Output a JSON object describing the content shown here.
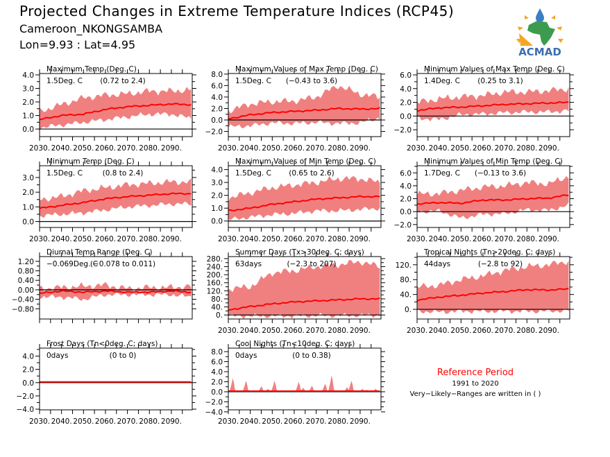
{
  "header": {
    "title": "Projected Changes in Extreme Temperature Indices (RCP45)",
    "location": "Cameroon_NKONGSAMBA",
    "coords": "Lon=9.93 : Lat=4.95"
  },
  "logo": {
    "text": "ACMAD"
  },
  "reference": {
    "title": "Reference Period",
    "period": "1991 to 2020",
    "note": "Very−Likely−Ranges are written in ( )"
  },
  "colors": {
    "mean": "#ff0000",
    "band": "#f08080",
    "zero": "#000000",
    "ref_title": "#ff0000"
  },
  "chart_data": [
    {
      "type": "area",
      "title": "Maximum Temp (Deg. C)",
      "value_label": "1.5Deg. C",
      "range_label": "(0.72 to 2.4)",
      "ylim": [
        -0.56,
        4.1
      ],
      "yticks": [
        0,
        1,
        2,
        3,
        4
      ],
      "ytick_labels": [
        "0.0",
        "1.0",
        "2.0",
        "3.0",
        "4.0"
      ],
      "x": [
        2030,
        2040,
        2050,
        2060,
        2070,
        2080,
        2090,
        2099
      ],
      "mean": [
        0.7,
        1.0,
        1.1,
        1.45,
        1.65,
        1.75,
        1.85,
        1.8
      ],
      "lower": [
        0.1,
        0.3,
        0.5,
        0.7,
        0.9,
        1.1,
        1.1,
        0.8
      ],
      "upper": [
        1.3,
        1.8,
        2.3,
        2.5,
        2.6,
        2.8,
        2.8,
        2.9
      ]
    },
    {
      "type": "area",
      "title": "Maximum Values of Max Temp (Deg. C)",
      "value_label": "1.5Deg. C",
      "range_label": "(−0.43 to 3.6)",
      "ylim": [
        -2.9,
        8.1
      ],
      "yticks": [
        -2,
        0,
        2,
        4,
        6,
        8
      ],
      "ytick_labels": [
        "−2.0",
        "0.0",
        "2.0",
        "4.0",
        "6.0",
        "8.0"
      ],
      "x": [
        2030,
        2040,
        2050,
        2060,
        2070,
        2080,
        2090,
        2099
      ],
      "mean": [
        0.2,
        0.9,
        1.3,
        1.5,
        1.7,
        2.0,
        1.9,
        2.0
      ],
      "lower": [
        -1.2,
        -1.0,
        -0.5,
        -0.6,
        -0.4,
        -0.6,
        -0.5,
        0.4
      ],
      "upper": [
        1.6,
        2.8,
        3.2,
        3.3,
        4.0,
        6.0,
        4.5,
        4.0
      ]
    },
    {
      "type": "area",
      "title": "Minimum Values of Max Temp (Deg. C)",
      "value_label": "1.4Deg. C",
      "range_label": "(0.25 to 3.1)",
      "ylim": [
        -3.0,
        6.2
      ],
      "yticks": [
        -2,
        0,
        2,
        4,
        6
      ],
      "ytick_labels": [
        "−2.0",
        "0.0",
        "2.0",
        "4.0",
        "6.0"
      ],
      "x": [
        2030,
        2040,
        2050,
        2060,
        2070,
        2080,
        2090,
        2099
      ],
      "mean": [
        0.8,
        1.2,
        1.3,
        1.5,
        1.7,
        1.8,
        1.9,
        2.0
      ],
      "lower": [
        -0.3,
        -0.5,
        0.2,
        0.3,
        0.5,
        0.6,
        0.6,
        0.8
      ],
      "upper": [
        2.0,
        2.5,
        2.8,
        3.0,
        3.5,
        3.5,
        3.7,
        4.0
      ]
    },
    {
      "type": "area",
      "title": "Minimum Temp (Deg. C)",
      "value_label": "1.5Deg. C",
      "range_label": "(0.8 to 2.4)",
      "ylim": [
        -0.4,
        3.8
      ],
      "yticks": [
        0,
        1,
        2,
        3
      ],
      "ytick_labels": [
        "0.0",
        "1.0",
        "2.0",
        "3.0"
      ],
      "x": [
        2030,
        2040,
        2050,
        2060,
        2070,
        2080,
        2090,
        2099
      ],
      "mean": [
        0.9,
        1.1,
        1.3,
        1.55,
        1.7,
        1.8,
        1.9,
        1.9
      ],
      "lower": [
        0.4,
        0.5,
        0.6,
        0.8,
        1.0,
        1.1,
        1.2,
        1.2
      ],
      "upper": [
        1.5,
        1.7,
        2.1,
        2.3,
        2.5,
        2.6,
        2.7,
        2.7
      ]
    },
    {
      "type": "area",
      "title": "Maximum Values of Min Temp (Deg. C)",
      "value_label": "1.5Deg. C",
      "range_label": "(0.65 to 2.6)",
      "ylim": [
        -0.5,
        4.3
      ],
      "yticks": [
        0,
        1,
        2,
        3,
        4
      ],
      "ytick_labels": [
        "0.0",
        "1.0",
        "2.0",
        "3.0",
        "4.0"
      ],
      "x": [
        2030,
        2040,
        2050,
        2060,
        2070,
        2080,
        2090,
        2099
      ],
      "mean": [
        0.8,
        1.0,
        1.3,
        1.5,
        1.7,
        1.8,
        1.9,
        1.9
      ],
      "lower": [
        0.1,
        0.3,
        0.5,
        0.6,
        0.8,
        0.8,
        0.9,
        1.0
      ],
      "upper": [
        1.8,
        2.2,
        2.6,
        2.8,
        3.0,
        3.3,
        3.3,
        3.0
      ]
    },
    {
      "type": "area",
      "title": "Minimum Values of Min Temp (Deg. C)",
      "value_label": "1.7Deg. C",
      "range_label": "(−0.13 to 3.6)",
      "ylim": [
        -2.45,
        7.1
      ],
      "yticks": [
        -2,
        0,
        2,
        4,
        6
      ],
      "ytick_labels": [
        "−2.0",
        "0.0",
        "2.0",
        "4.0",
        "6.0"
      ],
      "x": [
        2030,
        2040,
        2050,
        2060,
        2070,
        2080,
        2090,
        2099
      ],
      "mean": [
        1.2,
        1.4,
        1.3,
        1.8,
        1.8,
        2.0,
        2.1,
        2.6
      ],
      "lower": [
        0,
        0.1,
        -1.0,
        -0.4,
        -0.3,
        0.3,
        0.2,
        1.0
      ],
      "upper": [
        2.7,
        2.8,
        3.3,
        3.8,
        4.0,
        4.5,
        4.3,
        5.5
      ]
    },
    {
      "type": "area",
      "title": "Diurnal Temp Range (Deg. C)",
      "value_label": "−0.069Deg. C",
      "range_label": "(−0.078 to 0.011)",
      "ylim": [
        -1.23,
        1.4
      ],
      "yticks": [
        -0.8,
        -0.4,
        0,
        0.4,
        0.8,
        1.2
      ],
      "ytick_labels": [
        "−0.80",
        "−0.40",
        "0.00",
        "0.40",
        "0.80",
        "1.20"
      ],
      "x": [
        2030,
        2040,
        2050,
        2060,
        2070,
        2080,
        2090,
        2099
      ],
      "mean": [
        -0.15,
        -0.05,
        -0.1,
        -0.05,
        -0.1,
        -0.1,
        -0.05,
        -0.1
      ],
      "lower": [
        -0.3,
        -0.3,
        -0.4,
        -0.2,
        -0.2,
        -0.2,
        -0.2,
        -0.3
      ],
      "upper": [
        0.05,
        0.1,
        0.15,
        0.2,
        0.05,
        0.1,
        0.1,
        0.15
      ]
    },
    {
      "type": "area",
      "title": "Summer Days (Tx>30deg. C; days)",
      "value_label": "63days",
      "range_label": "(−2.3 to 207)",
      "ylim": [
        -20,
        290
      ],
      "yticks": [
        0,
        40,
        80,
        120,
        160,
        200,
        240,
        280
      ],
      "ytick_labels": [
        "0.",
        "40.",
        "80.",
        "120.",
        "160.",
        "200.",
        "240.",
        "280."
      ],
      "x": [
        2030,
        2040,
        2050,
        2060,
        2070,
        2080,
        2090,
        2099
      ],
      "mean": [
        25,
        42,
        55,
        65,
        70,
        75,
        80,
        80
      ],
      "lower": [
        -5,
        -5,
        -5,
        -5,
        -3,
        -3,
        -2,
        -2
      ],
      "upper": [
        130,
        140,
        210,
        220,
        240,
        250,
        265,
        240
      ]
    },
    {
      "type": "area",
      "title": "Tropical Nights (Tn>20deg. C; days)",
      "value_label": "44days",
      "range_label": "(−2.8 to 92)",
      "ylim": [
        -26,
        142
      ],
      "yticks": [
        0,
        40,
        80,
        120
      ],
      "ytick_labels": [
        "0.",
        "40.",
        "80.",
        "120."
      ],
      "x": [
        2030,
        2040,
        2050,
        2060,
        2070,
        2080,
        2090,
        2099
      ],
      "mean": [
        25,
        33,
        38,
        44,
        48,
        53,
        52,
        55
      ],
      "lower": [
        -5,
        -7,
        -5,
        -5,
        -5,
        -5,
        -5,
        -3
      ],
      "upper": [
        60,
        65,
        80,
        90,
        105,
        115,
        120,
        130
      ]
    },
    {
      "type": "area",
      "title": "Frost Days (Tn<0deg. C; days)",
      "value_label": "0days",
      "range_label": "(0 to 0)",
      "ylim": [
        -4.1,
        5.2
      ],
      "yticks": [
        -4,
        -2,
        0,
        2,
        4
      ],
      "ytick_labels": [
        "−4.0",
        "−2.0",
        "0.0",
        "2.0",
        "4.0"
      ],
      "x": [
        2030,
        2099
      ],
      "mean": [
        0,
        0
      ],
      "lower": [
        0,
        0
      ],
      "upper": [
        0,
        0
      ]
    },
    {
      "type": "area",
      "title": "Cool Nights (Tn<10deg. C; days)",
      "value_label": "0days",
      "range_label": "(0 to 0.38)",
      "ylim": [
        -3.6,
        8.7
      ],
      "yticks": [
        -4,
        -2,
        0,
        2,
        4,
        6,
        8
      ],
      "ytick_labels": [
        "−4.0",
        "−2.0",
        "0.0",
        "2.0",
        "4.0",
        "6.0",
        "8.0"
      ],
      "x": [
        2030,
        2099
      ],
      "mean": [
        0,
        0
      ],
      "lower": [
        0,
        0
      ],
      "upper": [
        0,
        0
      ],
      "spikes": [
        [
          2032,
          2.7
        ],
        [
          2038,
          2.2
        ],
        [
          2045,
          1.1
        ],
        [
          2048,
          0.6
        ],
        [
          2051,
          2.2
        ],
        [
          2062,
          2.0
        ],
        [
          2064,
          0.8
        ],
        [
          2068,
          1.2
        ],
        [
          2074,
          1.6
        ],
        [
          2077,
          3.3
        ],
        [
          2084,
          0.9
        ],
        [
          2086,
          2.2
        ],
        [
          2091,
          0.6
        ],
        [
          2093,
          0.4
        ],
        [
          2097,
          0.6
        ]
      ]
    }
  ],
  "xticks": [
    2030,
    2040,
    2050,
    2060,
    2070,
    2080,
    2090
  ],
  "xtick_labels": [
    "2030.",
    "2040.",
    "2050.",
    "2060.",
    "2070.",
    "2080.",
    "2090."
  ]
}
